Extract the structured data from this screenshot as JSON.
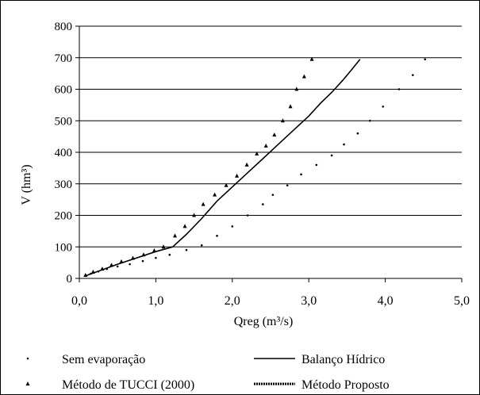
{
  "chart_data": {
    "type": "scatter",
    "title": "",
    "xlabel": "Qreg (m³/s)",
    "ylabel": "V (hm³)",
    "xlim": [
      0,
      5
    ],
    "ylim": [
      0,
      800
    ],
    "x_ticks": [
      0,
      1,
      2,
      3,
      4,
      5
    ],
    "y_ticks": [
      0,
      100,
      200,
      300,
      400,
      500,
      600,
      700,
      800
    ],
    "x_tick_labels": [
      "0,0",
      "1,0",
      "2,0",
      "3,0",
      "4,0",
      "5,0"
    ],
    "y_tick_labels": [
      "0",
      "100",
      "200",
      "300",
      "400",
      "500",
      "600",
      "700",
      "800"
    ],
    "grid": "horizontal",
    "legend_position": "bottom",
    "series": [
      {
        "name": "Sem evaporação",
        "marker": "dot",
        "color": "#000000",
        "x": [
          0.08,
          0.15,
          0.25,
          0.36,
          0.5,
          0.66,
          0.83,
          1.0,
          1.18,
          1.4,
          1.6,
          1.8,
          2.0,
          2.2,
          2.4,
          2.53,
          2.72,
          2.9,
          3.1,
          3.3,
          3.46,
          3.64,
          3.8,
          3.97,
          4.18,
          4.36,
          4.52
        ],
        "y": [
          8,
          15,
          22,
          30,
          38,
          45,
          55,
          65,
          75,
          90,
          105,
          135,
          165,
          200,
          235,
          265,
          295,
          330,
          360,
          390,
          425,
          460,
          500,
          545,
          600,
          645,
          695
        ]
      },
      {
        "name": "Método de TUCCI (2000)",
        "marker": "triangle",
        "color": "#000000",
        "x": [
          0.08,
          0.18,
          0.3,
          0.42,
          0.55,
          0.7,
          0.84,
          0.98,
          1.1,
          1.25,
          1.38,
          1.5,
          1.62,
          1.77,
          1.92,
          2.06,
          2.19,
          2.32,
          2.44,
          2.55,
          2.66,
          2.76,
          2.84,
          2.94,
          3.04
        ],
        "y": [
          10,
          20,
          30,
          42,
          53,
          64,
          75,
          88,
          100,
          135,
          165,
          200,
          235,
          265,
          295,
          325,
          360,
          395,
          420,
          455,
          500,
          545,
          600,
          640,
          695
        ]
      },
      {
        "name": "Balanço Hídrico",
        "marker": "line",
        "color": "#000000",
        "x": [
          0.08,
          0.5,
          1.0,
          1.22,
          1.4,
          1.6,
          1.8,
          2.0,
          2.2,
          2.4,
          2.6,
          2.8,
          3.0,
          3.15,
          3.3,
          3.45,
          3.57,
          3.67
        ],
        "y": [
          8,
          45,
          85,
          100,
          140,
          190,
          245,
          290,
          335,
          380,
          425,
          470,
          515,
          555,
          590,
          630,
          665,
          695
        ]
      },
      {
        "name": "Método Proposto",
        "marker": "dashed",
        "color": "#000000",
        "x": [],
        "y": []
      }
    ]
  }
}
